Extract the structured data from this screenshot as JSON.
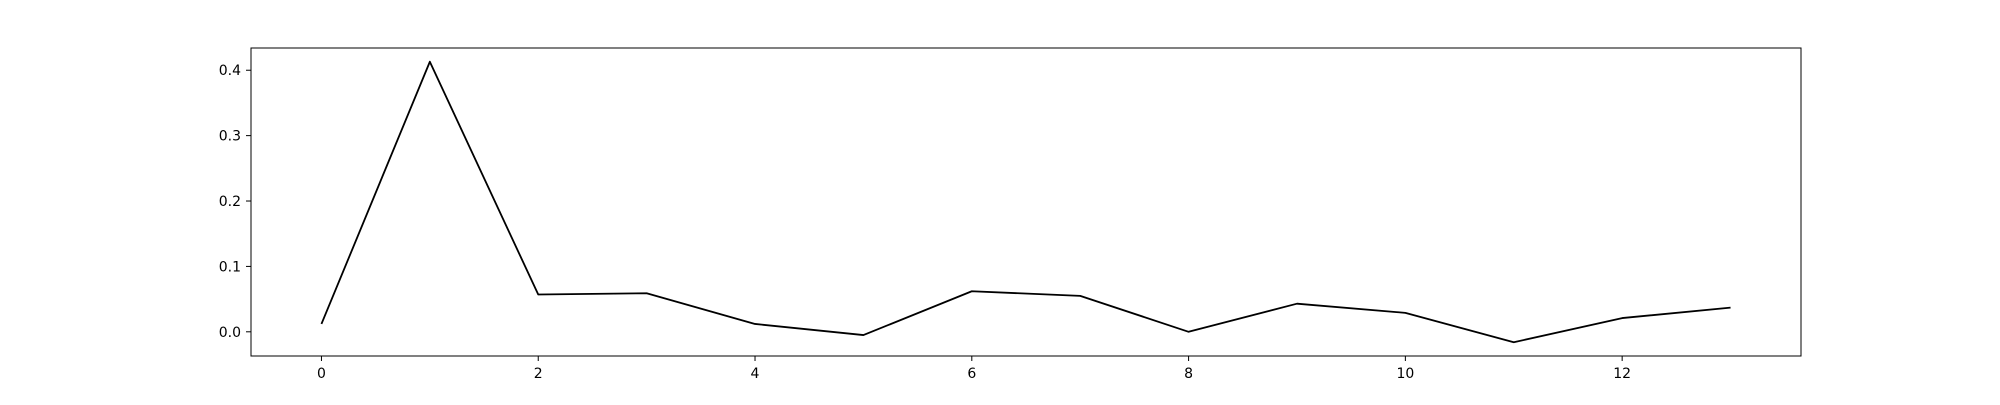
{
  "chart_data": {
    "type": "line",
    "x": [
      0,
      1,
      2,
      3,
      4,
      5,
      6,
      7,
      8,
      9,
      10,
      11,
      12,
      13
    ],
    "series": [
      {
        "values": [
          0.012,
          0.413,
          0.057,
          0.059,
          0.012,
          -0.005,
          0.062,
          0.055,
          0.0,
          0.043,
          0.029,
          -0.016,
          0.021,
          0.037
        ],
        "color": "#000000"
      }
    ],
    "xlim": [
      -0.65,
      13.65
    ],
    "ylim": [
      -0.037,
      0.434
    ],
    "xticks": [
      0,
      2,
      4,
      6,
      8,
      10,
      12
    ],
    "yticks": [
      0.0,
      0.1,
      0.2,
      0.3,
      0.4
    ],
    "xtick_labels": [
      "0",
      "2",
      "4",
      "6",
      "8",
      "10",
      "12"
    ],
    "ytick_labels": [
      "0.0",
      "0.1",
      "0.2",
      "0.3",
      "0.4"
    ],
    "grid": false,
    "legend": "none"
  }
}
